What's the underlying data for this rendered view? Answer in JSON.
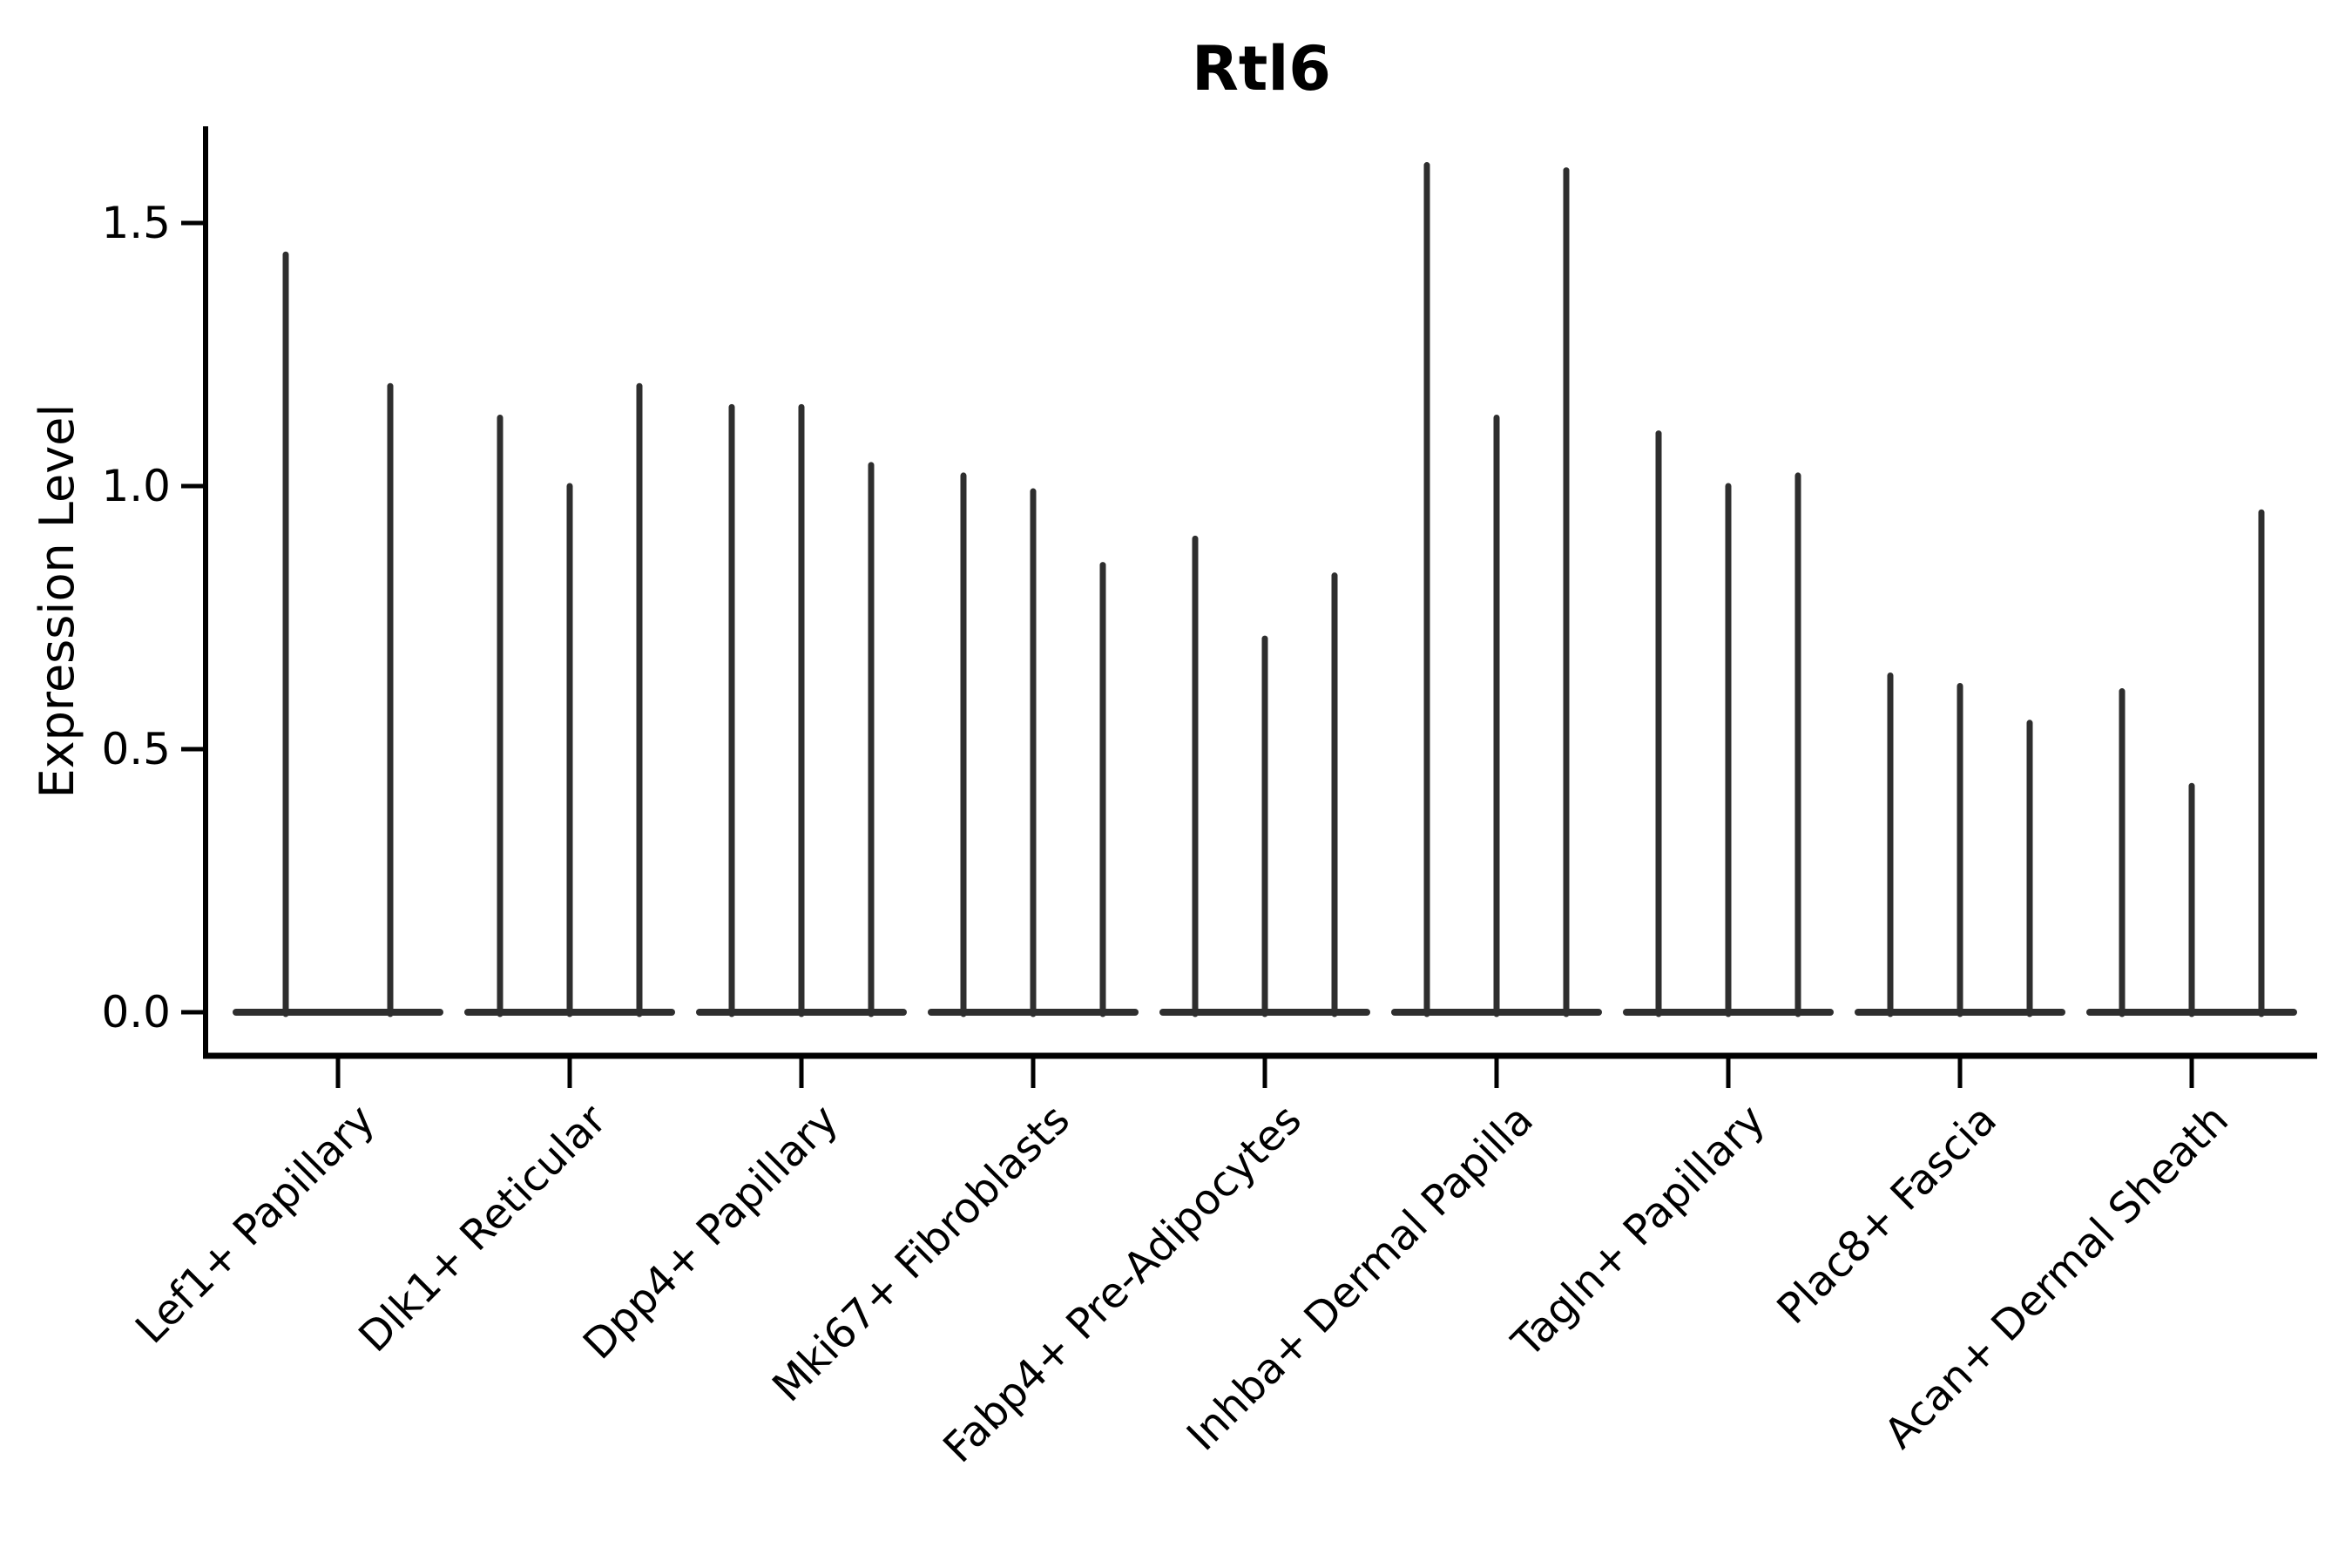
{
  "title": "Rtl6",
  "y_axis_label": "Expression Level",
  "chart_data": {
    "type": "violin",
    "title": "Rtl6",
    "xlabel": "",
    "ylabel": "Expression Level",
    "ylim": [
      -0.08,
      1.68
    ],
    "yticks": [
      0,
      0.5,
      1.0,
      1.5
    ],
    "ytick_labels": [
      "0.0",
      "0.5",
      "1.0",
      "1.5"
    ],
    "grid": false,
    "legend_position": "none",
    "style_note": "Seurat-style stacked violin; each violin collapses to a flat base at 0 with a thin spike to its maximum expression value",
    "categories": [
      "Lef1+ Papillary",
      "Dlk1+ Reticular",
      "Dpp4+ Papillary",
      "Mki67+ Fibroblasts",
      "Fabp4+ Pre-Adipocytes",
      "Inhba+ Dermal Papilla",
      "Tagln+ Papillary",
      "Plac8+ Fascia",
      "Acan+ Dermal Sheath"
    ],
    "groups": [
      {
        "label": "Lef1+ Papillary",
        "violin_max": [
          1.44,
          1.19
        ]
      },
      {
        "label": "Dlk1+ Reticular",
        "violin_max": [
          1.13,
          1.0,
          1.19
        ]
      },
      {
        "label": "Dpp4+ Papillary",
        "violin_max": [
          1.15,
          1.15,
          1.04
        ]
      },
      {
        "label": "Mki67+ Fibroblasts",
        "violin_max": [
          1.02,
          0.99,
          0.85
        ]
      },
      {
        "label": "Fabp4+ Pre-Adipocytes",
        "violin_max": [
          0.9,
          0.71,
          0.83
        ]
      },
      {
        "label": "Inhba+ Dermal Papilla",
        "violin_max": [
          1.61,
          1.13,
          1.6
        ]
      },
      {
        "label": "Tagln+ Papillary",
        "violin_max": [
          1.1,
          1.0,
          1.02
        ]
      },
      {
        "label": "Plac8+ Fascia",
        "violin_max": [
          0.64,
          0.62,
          0.55
        ]
      },
      {
        "label": "Acan+ Dermal Sheath",
        "violin_max": [
          0.61,
          0.43,
          0.95
        ]
      }
    ],
    "baseline_value": 0.0,
    "colors": {
      "violin": "#2e2e2e",
      "axis": "#000000",
      "text": "#000000",
      "background": "#ffffff"
    }
  }
}
